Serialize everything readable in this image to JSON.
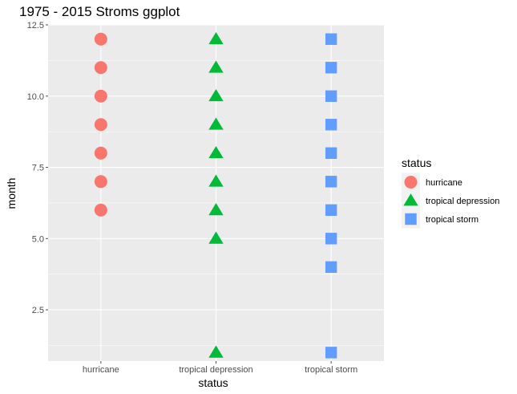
{
  "chart_data": {
    "type": "scatter",
    "title": "1975 - 2015 Stroms ggplot",
    "xlabel": "status",
    "ylabel": "month",
    "categories": [
      "hurricane",
      "tropical depression",
      "tropical storm"
    ],
    "ylim": [
      0.7,
      12.5
    ],
    "yticks": [
      2.5,
      5.0,
      7.5,
      10.0,
      12.5
    ],
    "ytick_labels": [
      "2.5",
      "5.0",
      "7.5",
      "10.0",
      "12.5"
    ],
    "grid": true,
    "legend": {
      "title": "status",
      "position": "right"
    },
    "series": [
      {
        "name": "hurricane",
        "shape": "circle",
        "color": "#F8766D",
        "x": "hurricane",
        "values": [
          6,
          7,
          8,
          9,
          10,
          11,
          12
        ]
      },
      {
        "name": "tropical depression",
        "shape": "triangle",
        "color": "#00BA38",
        "x": "tropical depression",
        "values": [
          1,
          5,
          6,
          7,
          8,
          9,
          10,
          11,
          12
        ]
      },
      {
        "name": "tropical storm",
        "shape": "square",
        "color": "#619CFF",
        "x": "tropical storm",
        "values": [
          1,
          4,
          5,
          6,
          7,
          8,
          9,
          10,
          11,
          12
        ]
      }
    ],
    "panel_background": "#EBEBEB",
    "gridline_color": "#FFFFFF",
    "tick_color": "#4D4D4D"
  }
}
